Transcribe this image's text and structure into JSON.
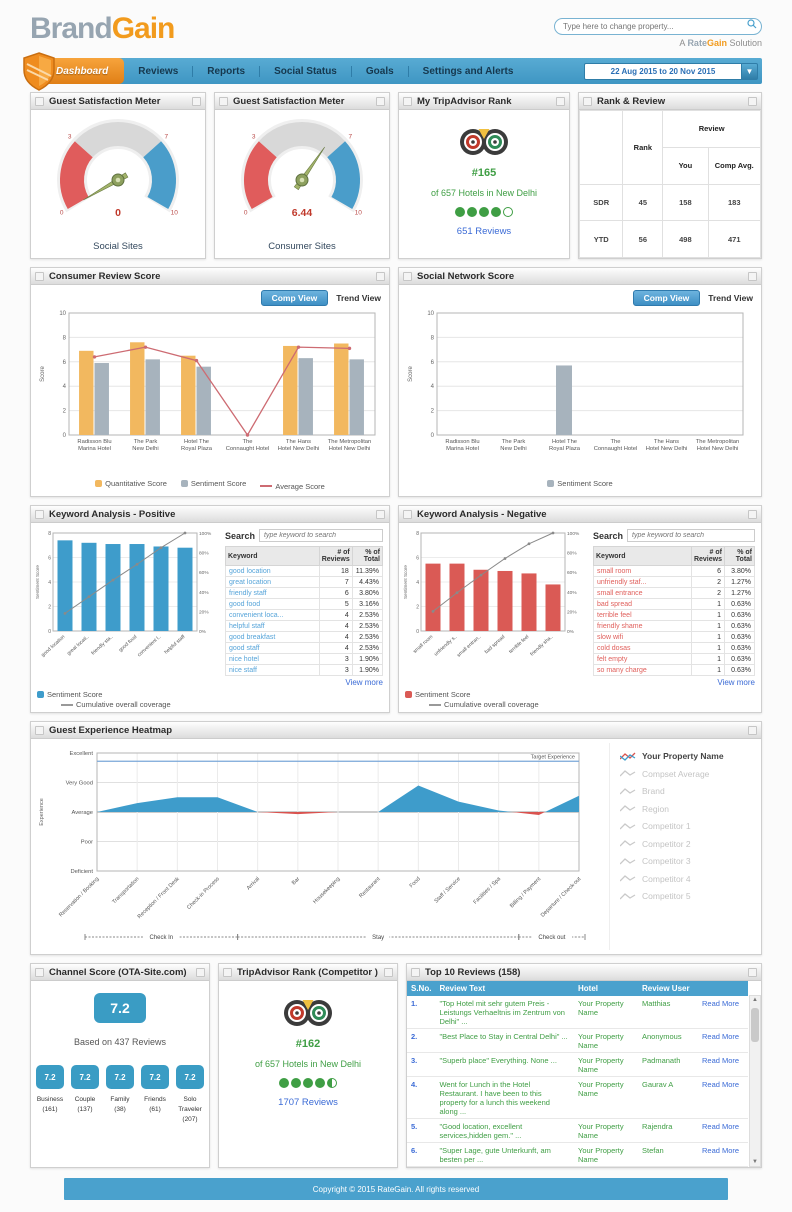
{
  "header": {
    "logo_brand": "Brand",
    "logo_gain": "Gain",
    "search_placeholder": "Type here to change property...",
    "tagline_prefix": "A ",
    "tagline_rate": "Rate",
    "tagline_gain": "Gain",
    "tagline_suffix": " Solution"
  },
  "nav": {
    "active_tab": "Dashboard",
    "items": [
      "Reviews",
      "Reports",
      "Social Status",
      "Goals",
      "Settings and Alerts"
    ],
    "date_range": "22 Aug 2015 to 20 Nov 2015",
    "date_caret": "▼"
  },
  "panels": {
    "gauge_social": {
      "title": "Guest Satisfaction Meter",
      "caption": "Social Sites"
    },
    "gauge_consumer": {
      "title": "Guest Satisfaction Meter",
      "caption": "Consumer Sites"
    },
    "tripadvisor": {
      "title": "My TripAdvisor Rank",
      "rank": "#165",
      "subtitle": "of 657 Hotels in New Delhi",
      "reviews": "651 Reviews"
    },
    "rank_review": {
      "title": "Rank & Review",
      "col_rank": "Rank",
      "col_review": "Review",
      "col_you": "You",
      "col_comp": "Comp Avg.",
      "rows": [
        {
          "label": "SDR",
          "rank": "45",
          "you": "158",
          "comp": "183"
        },
        {
          "label": "YTD",
          "rank": "56",
          "you": "498",
          "comp": "471"
        }
      ]
    },
    "consumer_review": {
      "title": "Consumer Review Score",
      "btn_comp": "Comp View",
      "btn_trend": "Trend View"
    },
    "social_network": {
      "title": "Social Network Score",
      "btn_comp": "Comp View",
      "btn_trend": "Trend View"
    },
    "keyword_positive": {
      "title": "Keyword Analysis - Positive",
      "search_label": "Search",
      "search_placeholder": "type keyword to search",
      "col_keyword": "Keyword",
      "col_reviews": "# of Reviews",
      "col_total": "% of Total",
      "view_more": "View more",
      "rows": [
        {
          "k": "good location",
          "n": "18",
          "p": "11.39%"
        },
        {
          "k": "great location",
          "n": "7",
          "p": "4.43%"
        },
        {
          "k": "friendly staff",
          "n": "6",
          "p": "3.80%"
        },
        {
          "k": "good food",
          "n": "5",
          "p": "3.16%"
        },
        {
          "k": "convenient loca...",
          "n": "4",
          "p": "2.53%"
        },
        {
          "k": "helpful staff",
          "n": "4",
          "p": "2.53%"
        },
        {
          "k": "good breakfast",
          "n": "4",
          "p": "2.53%"
        },
        {
          "k": "good staff",
          "n": "4",
          "p": "2.53%"
        },
        {
          "k": "nice hotel",
          "n": "3",
          "p": "1.90%"
        },
        {
          "k": "nice staff",
          "n": "3",
          "p": "1.90%"
        }
      ]
    },
    "keyword_negative": {
      "title": "Keyword Analysis - Negative",
      "search_label": "Search",
      "search_placeholder": "type keyword to search",
      "col_keyword": "Keyword",
      "col_reviews": "# of Reviews",
      "col_total": "% of Total",
      "view_more": "View more",
      "rows": [
        {
          "k": "small room",
          "n": "6",
          "p": "3.80%"
        },
        {
          "k": "unfriendly staf...",
          "n": "2",
          "p": "1.27%"
        },
        {
          "k": "small entrance",
          "n": "2",
          "p": "1.27%"
        },
        {
          "k": "bad spread",
          "n": "1",
          "p": "0.63%"
        },
        {
          "k": "terrible feel",
          "n": "1",
          "p": "0.63%"
        },
        {
          "k": "friendly shame",
          "n": "1",
          "p": "0.63%"
        },
        {
          "k": "slow wifi",
          "n": "1",
          "p": "0.63%"
        },
        {
          "k": "cold dosas",
          "n": "1",
          "p": "0.63%"
        },
        {
          "k": "felt empty",
          "n": "1",
          "p": "0.63%"
        },
        {
          "k": "so many charge",
          "n": "1",
          "p": "0.63%"
        }
      ]
    },
    "heatmap": {
      "title": "Guest Experience Heatmap",
      "legend": [
        "Your Property Name",
        "Compset Average",
        "Brand",
        "Region",
        "Competitor 1",
        "Competitor 2",
        "Competitor 3",
        "Competitor 4",
        "Competitor 5"
      ]
    },
    "channel": {
      "title": "Channel Score (OTA-Site.com)",
      "main_score": "7.2",
      "based_on": "Based on 437 Reviews",
      "items": [
        {
          "score": "7.2",
          "label": "Business",
          "count": "(161)"
        },
        {
          "score": "7.2",
          "label": "Couple",
          "count": "(137)"
        },
        {
          "score": "7.2",
          "label": "Family",
          "count": "(38)"
        },
        {
          "score": "7.2",
          "label": "Friends",
          "count": "(61)"
        },
        {
          "score": "7.2",
          "label": "Solo Traveler",
          "count": "(207)"
        }
      ]
    },
    "trip_competitor": {
      "title": "TripAdvisor Rank (Competitor )",
      "rank": "#162",
      "subtitle": "of 657 Hotels in New Delhi",
      "reviews": "1707 Reviews"
    },
    "top_reviews": {
      "title": "Top 10 Reviews (158)",
      "col_sno": "S.No.",
      "col_text": "Review Text",
      "col_hotel": "Hotel",
      "col_user": "Review User",
      "read_more": "Read More",
      "rows": [
        {
          "no": "1.",
          "text": "\"Top Hotel mit sehr gutem Preis - Leistungs Verhaeltnis im Zentrum von Delhi\" ...",
          "hotel": "Your Property Name",
          "user": "Matthias"
        },
        {
          "no": "2.",
          "text": "\"Best Place to Stay in Central Delhi\" ...",
          "hotel": "Your Property Name",
          "user": "Anonymous"
        },
        {
          "no": "3.",
          "text": "\"Superb place\" Everything. None ...",
          "hotel": "Your Property Name",
          "user": "Padmanath"
        },
        {
          "no": "4.",
          "text": "Went for Lunch in the Hotel Restaurant. I have been to this property for a lunch this weekend along ...",
          "hotel": "Your Property Name",
          "user": "Gaurav A"
        },
        {
          "no": "5.",
          "text": "\"Good location, excellent services,hidden gem.\" ...",
          "hotel": "Your Property Name",
          "user": "Rajendra"
        },
        {
          "no": "6.",
          "text": "\"Super Lage, gute Unterkunft, am besten per ...",
          "hotel": "Your Property Name",
          "user": "Stefan"
        }
      ]
    }
  },
  "ratings": {
    "my": 4.0,
    "competitor": 4.5
  },
  "footer": {
    "copyright": "Copyright © 2015 RateGain. All rights reserved"
  },
  "colors": {
    "nav_blue": "#4aa1cd",
    "accent_orange": "#f29b1d",
    "teal_badge": "#3a9cc4",
    "green_text": "#3f9e44",
    "link_blue": "#3b6bd6",
    "bar_orange": "#f2b85f",
    "bar_gray": "#a7b3bd",
    "bar_blue": "#3e9ccb",
    "bar_red": "#da5a55",
    "line_red": "#cd6b72"
  },
  "chart_data": {
    "gauge_social": {
      "type": "gauge",
      "value": 0,
      "value_label": "0",
      "min": 0,
      "max": 10,
      "bands": [
        {
          "to": 3,
          "color": "#e05c5c"
        },
        {
          "to": 7,
          "color": "#d8d8d8"
        },
        {
          "to": 10,
          "color": "#4a9dca"
        }
      ],
      "ticks": [
        {
          "v": 0,
          "label": "0"
        },
        {
          "v": 3,
          "label": "3"
        },
        {
          "v": 7,
          "label": "7"
        },
        {
          "v": 10,
          "label": "10"
        }
      ]
    },
    "gauge_consumer": {
      "type": "gauge",
      "value": 6.44,
      "value_label": "6.44",
      "min": 0,
      "max": 10,
      "bands": [
        {
          "to": 3,
          "color": "#e05c5c"
        },
        {
          "to": 7,
          "color": "#d8d8d8"
        },
        {
          "to": 10,
          "color": "#4a9dca"
        }
      ],
      "ticks": [
        {
          "v": 0,
          "label": "0"
        },
        {
          "v": 3,
          "label": "3"
        },
        {
          "v": 7,
          "label": "7"
        },
        {
          "v": 10,
          "label": "10"
        }
      ]
    },
    "consumer_review": {
      "type": "bar",
      "ylabel": "Score",
      "ylim": [
        0,
        10
      ],
      "yticks": [
        0,
        2,
        4,
        6,
        8,
        10
      ],
      "categories": [
        "Radisson Blu Marina Hotel",
        "The Park New Delhi",
        "Hotel The Royal Plaza",
        "The Connaught Hotel",
        "The Hans Hotel New Delhi",
        "The Metropolitan Hotel New Delhi"
      ],
      "series": [
        {
          "name": "Quantitative Score",
          "color": "#f2b85f",
          "values": [
            6.9,
            7.6,
            6.5,
            0,
            7.3,
            7.5
          ]
        },
        {
          "name": "Sentiment Score",
          "color": "#a7b3bd",
          "values": [
            5.9,
            6.2,
            5.6,
            0,
            6.3,
            6.2
          ]
        }
      ],
      "line": {
        "name": "Average Score",
        "color": "#cd6b72",
        "values": [
          6.4,
          7.2,
          6.1,
          0,
          7.2,
          7.1
        ]
      }
    },
    "social_network": {
      "type": "bar",
      "ylabel": "Score",
      "ylim": [
        0,
        10
      ],
      "yticks": [
        0,
        2,
        4,
        6,
        8,
        10
      ],
      "categories": [
        "Radisson Blu Marina Hotel",
        "The Park New Delhi",
        "Hotel The Royal Plaza",
        "The Connaught Hotel",
        "The Hans Hotel New Delhi",
        "The Metropolitan Hotel New Delhi"
      ],
      "series": [
        {
          "name": "Sentiment Score",
          "color": "#a7b3bd",
          "values": [
            0,
            0,
            5.7,
            0,
            0,
            0
          ]
        }
      ]
    },
    "keyword_positive": {
      "type": "pareto",
      "ylim": [
        0,
        8
      ],
      "yticks": [
        0,
        2,
        4,
        6,
        8
      ],
      "ylabel": "Sentiment Score",
      "bar_color": "#3e9ccb",
      "series_label": "Sentiment Score",
      "line_label": "Cumulative overall coverage",
      "bars": [
        7.4,
        7.2,
        7.1,
        7.1,
        6.9,
        6.8
      ],
      "cumulative": [
        18,
        35,
        52,
        68,
        85,
        100
      ],
      "labels": [
        "good location",
        "great location",
        "friendly staff",
        "good food",
        "convenient loca...",
        "helpful staff"
      ]
    },
    "keyword_negative": {
      "type": "pareto",
      "ylim": [
        0,
        8
      ],
      "yticks": [
        0,
        2,
        4,
        6,
        8
      ],
      "ylabel": "Sentiment Score",
      "bar_color": "#da5a55",
      "series_label": "Sentiment Score",
      "line_label": "Cumulative overall coverage",
      "bars": [
        5.5,
        5.5,
        5.0,
        4.9,
        4.7,
        3.8
      ],
      "cumulative": [
        20,
        39,
        57,
        74,
        89,
        100
      ],
      "labels": [
        "small room",
        "unfriendly staf...",
        "small entrance",
        "bad spread",
        "terrible feel",
        "friendly shame"
      ]
    },
    "experience_heatmap": {
      "type": "area",
      "ylabel": "Experience",
      "ylabels": [
        "Deficient",
        "Poor",
        "Average",
        "Very Good",
        "Excellent"
      ],
      "target": {
        "value": 3.72,
        "label": "Target Experience"
      },
      "baseline": 2,
      "pos_color": "#3e9ccb",
      "neg_color": "#d9534f",
      "categories": [
        "Reservation / Booking",
        "Transportation",
        "Reception / Front Desk",
        "Check-in Process",
        "Arrival",
        "Bar",
        "Housekeeping",
        "Restaurant",
        "Food",
        "Staff / Service",
        "Facilities / Spa",
        "Billing / Payment",
        "Departure / Check-out"
      ],
      "values": [
        2.0,
        2.3,
        2.5,
        2.5,
        2.0,
        1.93,
        2.0,
        2.0,
        2.9,
        2.35,
        2.05,
        1.9,
        2.55
      ],
      "sections": [
        {
          "label": "Check In",
          "from": 0,
          "to": 3
        },
        {
          "label": "Stay",
          "from": 4,
          "to": 10
        },
        {
          "label": "Check out",
          "from": 11,
          "to": 12
        }
      ]
    }
  }
}
